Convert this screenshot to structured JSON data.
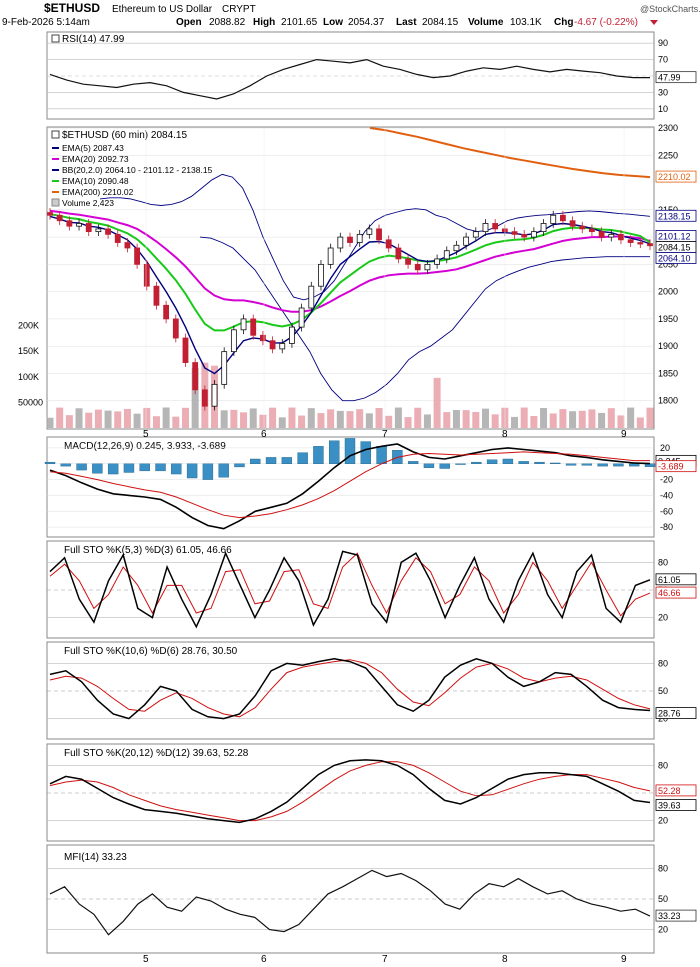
{
  "header": {
    "symbol": "$ETHUSD",
    "name": "Ethereum to US Dollar",
    "exchange": "CRYPT",
    "datetime": "9-Feb-2026 5:14am",
    "open_label": "Open",
    "open": "2088.82",
    "high_label": "High",
    "high": "2101.65",
    "low_label": "Low",
    "low": "2054.37",
    "last_label": "Last",
    "last": "2084.15",
    "volume_label": "Volume",
    "volume": "103.1K",
    "chg_label": "Chg",
    "chg": "-4.67 (-0.22%)",
    "copyright": "@StockCharts.com"
  },
  "colors": {
    "candle_up": "#111111",
    "candle_down": "#c21f33",
    "volume": "#e8a0a8",
    "volume_up": "#a9a9a9",
    "ema5": "#000080",
    "ema20": "#d400d4",
    "ema10": "#19c919",
    "ema200": "#e06010",
    "bb": "#000080",
    "macd_hist": "#3a8fc4",
    "signal": "#d01010"
  },
  "chart_data": [
    {
      "type": "line",
      "panel": "RSI",
      "title": "RSI(14) 47.99",
      "ylim": [
        0,
        100
      ],
      "y_ticks": [
        90,
        70,
        50,
        30,
        10
      ],
      "last_value": "47.99",
      "series": [
        {
          "name": "RSI(14)",
          "values": [
            52,
            45,
            40,
            38,
            36,
            40,
            42,
            38,
            30,
            26,
            22,
            28,
            38,
            50,
            58,
            64,
            70,
            68,
            66,
            70,
            62,
            58,
            52,
            48,
            50,
            56,
            60,
            58,
            62,
            58,
            55,
            58,
            56,
            54,
            50,
            48,
            47.99
          ]
        }
      ]
    },
    {
      "type": "candlestick",
      "panel": "Price",
      "title": "$ETHUSD (60 min) 2084.15",
      "legend": [
        "EMA(5) 2087.43",
        "EMA(20) 2092.73",
        "BB(20,2.0) 2064.10 - 2101.12 - 2138.15",
        "EMA(10) 2090.48",
        "EMA(200) 2210.02",
        "Volume 2,423"
      ],
      "ylim": [
        1750,
        2300
      ],
      "y_ticks": [
        2300,
        2250,
        2150,
        2100,
        2050,
        2000,
        1950,
        1900,
        1850,
        1800
      ],
      "x_ticks": [
        "5",
        "6",
        "7",
        "8",
        "9"
      ],
      "last_labels": [
        "2210.02",
        "2138.15",
        "2101.12",
        "2084.15",
        "2064.10"
      ],
      "close": [
        2140,
        2130,
        2120,
        2125,
        2110,
        2115,
        2105,
        2090,
        2080,
        2050,
        2010,
        1975,
        1950,
        1915,
        1870,
        1820,
        1790,
        1830,
        1890,
        1930,
        1950,
        1920,
        1910,
        1895,
        1905,
        1935,
        1970,
        2010,
        2050,
        2080,
        2100,
        2090,
        2105,
        2115,
        2095,
        2080,
        2060,
        2050,
        2040,
        2050,
        2060,
        2075,
        2085,
        2100,
        2110,
        2125,
        2115,
        2110,
        2105,
        2100,
        2110,
        2125,
        2140,
        2130,
        2120,
        2115,
        2110,
        2100,
        2105,
        2095,
        2090,
        2088,
        2084.15
      ],
      "ema5": [
        2138,
        2133,
        2127,
        2126,
        2120,
        2118,
        2113,
        2104,
        2095,
        2078,
        2055,
        2027,
        2000,
        1970,
        1935,
        1895,
        1860,
        1850,
        1865,
        1888,
        1910,
        1915,
        1913,
        1906,
        1906,
        1917,
        1937,
        1962,
        1993,
        2024,
        2050,
        2064,
        2078,
        2091,
        2092,
        2088,
        2078,
        2068,
        2058,
        2055,
        2057,
        2064,
        2072,
        2083,
        2093,
        2105,
        2108,
        2108,
        2107,
        2104,
        2106,
        2113,
        2123,
        2125,
        2123,
        2120,
        2116,
        2110,
        2108,
        2103,
        2098,
        2094,
        2087.43
      ],
      "ema10": [
        2142,
        2139,
        2135,
        2133,
        2128,
        2125,
        2121,
        2114,
        2107,
        2096,
        2080,
        2061,
        2042,
        2021,
        1996,
        1967,
        1941,
        1929,
        1929,
        1936,
        1944,
        1946,
        1944,
        1939,
        1936,
        1940,
        1948,
        1962,
        1979,
        1998,
        2017,
        2030,
        2043,
        2055,
        2062,
        2066,
        2064,
        2061,
        2057,
        2055,
        2056,
        2059,
        2063,
        2070,
        2077,
        2085,
        2090,
        2093,
        2095,
        2096,
        2099,
        2104,
        2111,
        2115,
        2117,
        2117,
        2116,
        2114,
        2113,
        2110,
        2106,
        2102,
        2090.48
      ],
      "ema20": [
        2148,
        2146,
        2143,
        2141,
        2138,
        2135,
        2132,
        2127,
        2122,
        2115,
        2104,
        2092,
        2078,
        2063,
        2046,
        2026,
        2006,
        1993,
        1986,
        1984,
        1984,
        1981,
        1977,
        1971,
        1966,
        1963,
        1963,
        1966,
        1973,
        1982,
        1992,
        2001,
        2011,
        2020,
        2026,
        2030,
        2032,
        2033,
        2033,
        2034,
        2036,
        2038,
        2041,
        2046,
        2052,
        2058,
        2064,
        2068,
        2072,
        2075,
        2078,
        2083,
        2088,
        2093,
        2096,
        2098,
        2100,
        2100,
        2101,
        2101,
        2100,
        2098,
        2092.73
      ],
      "bb_upper": [
        2170,
        2172,
        2172,
        2170,
        2165,
        2160,
        2158,
        2160,
        2165,
        2175,
        2190,
        2205,
        2215,
        2210,
        2190,
        2150,
        2100,
        2060,
        2020,
        1990,
        1985,
        1990,
        2000,
        2020,
        2050,
        2080,
        2110,
        2130,
        2140,
        2145,
        2150,
        2152,
        2150,
        2140,
        2135,
        2125,
        2115,
        2110,
        2112,
        2120,
        2130,
        2135,
        2138,
        2140,
        2141,
        2143,
        2145,
        2147,
        2148,
        2147,
        2145,
        2143,
        2142,
        2140,
        2138.15
      ],
      "bb_lower": [
        2100,
        2098,
        2090,
        2080,
        2060,
        2040,
        2010,
        1980,
        1950,
        1920,
        1890,
        1850,
        1820,
        1800,
        1800,
        1805,
        1815,
        1830,
        1850,
        1875,
        1890,
        1900,
        1915,
        1930,
        1955,
        1980,
        2005,
        2020,
        2030,
        2038,
        2045,
        2050,
        2055,
        2058,
        2060,
        2062,
        2063,
        2064,
        2064,
        2064,
        2064,
        2064.1
      ],
      "ema200": [
        2300,
        2296,
        2290,
        2284,
        2277,
        2270,
        2263,
        2257,
        2251,
        2245,
        2240,
        2235,
        2230,
        2225,
        2221,
        2217,
        2214,
        2212,
        2210.02
      ],
      "volume": {
        "ylim": [
          0,
          250000
        ],
        "y_ticks": [
          "200K",
          "150K",
          "100K",
          "50000"
        ],
        "last": "2423"
      }
    },
    {
      "type": "line",
      "panel": "MACD",
      "title": "MACD(12,26,9) 0.245, 3.933, -3.689",
      "ylim": [
        -90,
        30
      ],
      "y_ticks": [
        20,
        0,
        -20,
        -40,
        -60,
        -80
      ],
      "last_labels": [
        "0.245",
        "-3.689"
      ],
      "series": [
        {
          "name": "MACD",
          "values": [
            -8,
            -15,
            -24,
            -32,
            -38,
            -40,
            -42,
            -45,
            -55,
            -68,
            -78,
            -82,
            -72,
            -60,
            -55,
            -50,
            -38,
            -22,
            -5,
            10,
            18,
            22,
            25,
            15,
            8,
            6,
            10,
            14,
            18,
            20,
            18,
            16,
            14,
            10,
            8,
            5,
            3,
            1,
            0.245
          ]
        },
        {
          "name": "Signal",
          "values": [
            -10,
            -12,
            -16,
            -20,
            -25,
            -29,
            -33,
            -36,
            -42,
            -50,
            -58,
            -65,
            -68,
            -66,
            -63,
            -58,
            -52,
            -44,
            -34,
            -22,
            -10,
            0,
            8,
            12,
            13,
            12,
            11,
            12,
            13,
            14,
            15,
            14,
            13,
            12,
            10,
            8,
            6,
            4,
            3.933
          ]
        }
      ],
      "histogram": [
        2,
        -3,
        -8,
        -12,
        -13,
        -11,
        -9,
        -9,
        -13,
        -18,
        -20,
        -17,
        -4,
        6,
        8,
        8,
        14,
        22,
        29,
        32,
        28,
        22,
        17,
        3,
        -5,
        -6,
        -1,
        2,
        5,
        6,
        3,
        2,
        1,
        -2,
        -2,
        -3,
        -3,
        -3,
        -3.689
      ]
    },
    {
      "type": "line",
      "panel": "STO1",
      "title": "Full STO %K(5,3) %D(3) 61.05, 46.66",
      "ylim": [
        0,
        100
      ],
      "y_ticks": [
        80,
        50,
        20
      ],
      "last_labels": [
        "61.05",
        "46.66"
      ],
      "series": [
        {
          "name": "%K",
          "values": [
            70,
            85,
            40,
            15,
            60,
            88,
            30,
            20,
            75,
            40,
            10,
            45,
            90,
            55,
            20,
            50,
            85,
            60,
            12,
            40,
            92,
            88,
            35,
            15,
            80,
            90,
            60,
            20,
            55,
            85,
            40,
            15,
            60,
            90,
            45,
            20,
            70,
            88,
            30,
            15,
            55,
            61.05
          ]
        },
        {
          "name": "%D",
          "values": [
            65,
            78,
            60,
            30,
            45,
            75,
            55,
            25,
            55,
            55,
            25,
            30,
            70,
            72,
            35,
            38,
            70,
            72,
            35,
            30,
            75,
            90,
            55,
            25,
            60,
            85,
            70,
            35,
            45,
            75,
            60,
            25,
            45,
            80,
            60,
            30,
            55,
            80,
            50,
            22,
            40,
            46.66
          ]
        }
      ]
    },
    {
      "type": "line",
      "panel": "STO2",
      "title": "Full STO %K(10,6) %D(6) 28.76, 30.50",
      "ylim": [
        0,
        100
      ],
      "y_ticks": [
        80,
        50,
        20
      ],
      "last_labels": [
        "28.76",
        "30.50"
      ],
      "series": [
        {
          "name": "%K",
          "values": [
            68,
            72,
            60,
            40,
            25,
            20,
            35,
            55,
            50,
            30,
            22,
            20,
            25,
            45,
            72,
            80,
            78,
            82,
            85,
            82,
            75,
            55,
            35,
            28,
            40,
            65,
            78,
            85,
            80,
            65,
            55,
            60,
            70,
            68,
            55,
            40,
            32,
            30,
            28.76
          ]
        },
        {
          "name": "%D",
          "values": [
            62,
            66,
            64,
            55,
            42,
            30,
            28,
            40,
            48,
            42,
            32,
            25,
            22,
            32,
            52,
            70,
            76,
            79,
            82,
            84,
            80,
            70,
            52,
            38,
            34,
            48,
            64,
            76,
            80,
            74,
            64,
            60,
            64,
            66,
            62,
            52,
            42,
            35,
            30.5
          ]
        }
      ]
    },
    {
      "type": "line",
      "panel": "STO3",
      "title": "Full STO %K(20,12) %D(12) 39.63, 52.28",
      "ylim": [
        0,
        100
      ],
      "y_ticks": [
        80,
        50,
        20
      ],
      "last_labels": [
        "52.28",
        "39.63"
      ],
      "series": [
        {
          "name": "%K",
          "values": [
            60,
            68,
            65,
            55,
            45,
            38,
            32,
            30,
            28,
            25,
            22,
            20,
            18,
            22,
            30,
            40,
            55,
            70,
            80,
            85,
            86,
            85,
            80,
            70,
            55,
            42,
            38,
            45,
            55,
            65,
            70,
            72,
            72,
            70,
            68,
            60,
            52,
            42,
            39.63
          ]
        },
        {
          "name": "%D",
          "values": [
            58,
            62,
            64,
            62,
            56,
            48,
            42,
            36,
            32,
            29,
            26,
            23,
            20,
            20,
            24,
            30,
            40,
            52,
            64,
            74,
            80,
            84,
            84,
            80,
            72,
            62,
            52,
            47,
            48,
            54,
            60,
            65,
            68,
            70,
            70,
            66,
            62,
            56,
            52.28
          ]
        }
      ]
    },
    {
      "type": "line",
      "panel": "MFI",
      "title": "MFI(14) 33.23",
      "ylim": [
        0,
        100
      ],
      "y_ticks": [
        80,
        50,
        20
      ],
      "last_value": "33.23",
      "series": [
        {
          "name": "MFI(14)",
          "values": [
            55,
            62,
            45,
            35,
            15,
            28,
            45,
            55,
            42,
            38,
            52,
            48,
            40,
            35,
            32,
            20,
            18,
            25,
            40,
            55,
            62,
            70,
            78,
            72,
            75,
            68,
            58,
            45,
            40,
            55,
            65,
            62,
            70,
            62,
            55,
            58,
            50,
            45,
            42,
            38,
            40,
            33.23
          ]
        }
      ]
    }
  ]
}
